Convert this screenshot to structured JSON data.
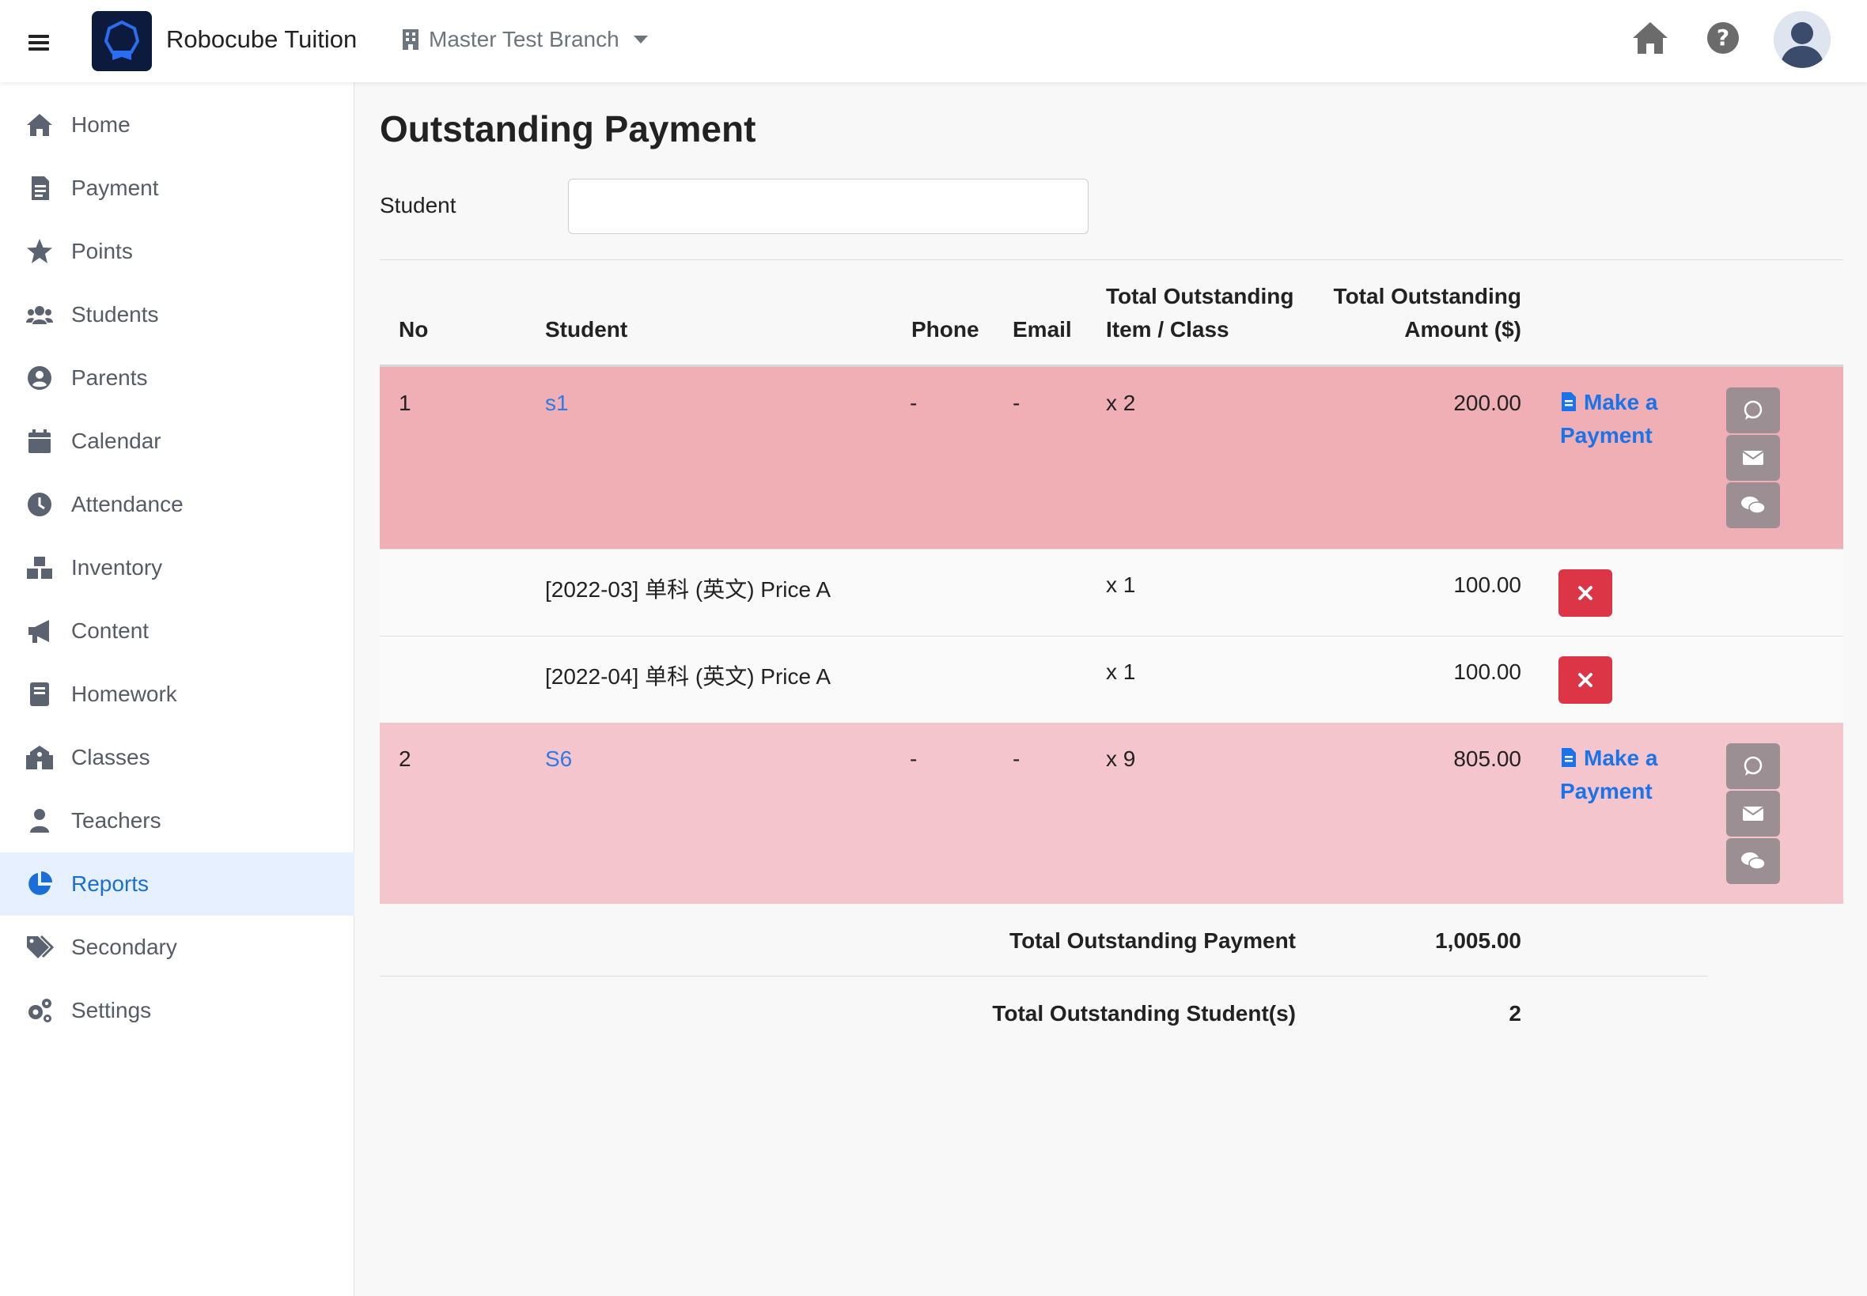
{
  "header": {
    "brand": "Robocube Tuition",
    "branch": "Master Test Branch"
  },
  "sidebar": {
    "items": [
      {
        "label": "Home",
        "icon": "home-icon"
      },
      {
        "label": "Payment",
        "icon": "receipt-icon"
      },
      {
        "label": "Points",
        "icon": "star-icon"
      },
      {
        "label": "Students",
        "icon": "users-icon"
      },
      {
        "label": "Parents",
        "icon": "user-circle-icon"
      },
      {
        "label": "Calendar",
        "icon": "calendar-icon"
      },
      {
        "label": "Attendance",
        "icon": "clock-icon"
      },
      {
        "label": "Inventory",
        "icon": "boxes-icon"
      },
      {
        "label": "Content",
        "icon": "megaphone-icon"
      },
      {
        "label": "Homework",
        "icon": "book-icon"
      },
      {
        "label": "Classes",
        "icon": "school-icon"
      },
      {
        "label": "Teachers",
        "icon": "teacher-icon"
      },
      {
        "label": "Reports",
        "icon": "pie-chart-icon",
        "active": true
      },
      {
        "label": "Secondary",
        "icon": "tags-icon"
      },
      {
        "label": "Settings",
        "icon": "gears-icon"
      }
    ]
  },
  "main": {
    "title": "Outstanding Payment",
    "filter": {
      "label": "Student",
      "value": "",
      "placeholder": ""
    },
    "table": {
      "headers": {
        "no": "No",
        "student": "Student",
        "phone": "Phone",
        "email": "Email",
        "items_line1": "Total Outstanding",
        "items_line2": "Item / Class",
        "amount_line1": "Total Outstanding",
        "amount_line2": "Amount ($)"
      },
      "rows": [
        {
          "no": "1",
          "student": "s1",
          "phone": "-",
          "email": "-",
          "items": "x 2",
          "amount": "200.00",
          "pay_line1": "Make a",
          "pay_line2": "Payment",
          "details": [
            {
              "name": "[2022-03] 单科 (英文) Price A",
              "qty": "x 1",
              "amount": "100.00"
            },
            {
              "name": "[2022-04] 单科 (英文) Price A",
              "qty": "x 1",
              "amount": "100.00"
            }
          ]
        },
        {
          "no": "2",
          "student": "S6",
          "phone": "-",
          "email": "-",
          "items": "x 9",
          "amount": "805.00",
          "pay_line1": "Make a",
          "pay_line2": "Payment",
          "details": []
        }
      ]
    },
    "totals": {
      "payment_label": "Total Outstanding Payment",
      "payment_value": "1,005.00",
      "students_label": "Total Outstanding Student(s)",
      "students_value": "2"
    }
  },
  "colors": {
    "row1_bg": "#f0aeb5",
    "row2_bg": "#f5c5cd",
    "accent": "#1a73e8",
    "danger": "#dc3545",
    "active_nav_bg": "#e7f0fe"
  }
}
